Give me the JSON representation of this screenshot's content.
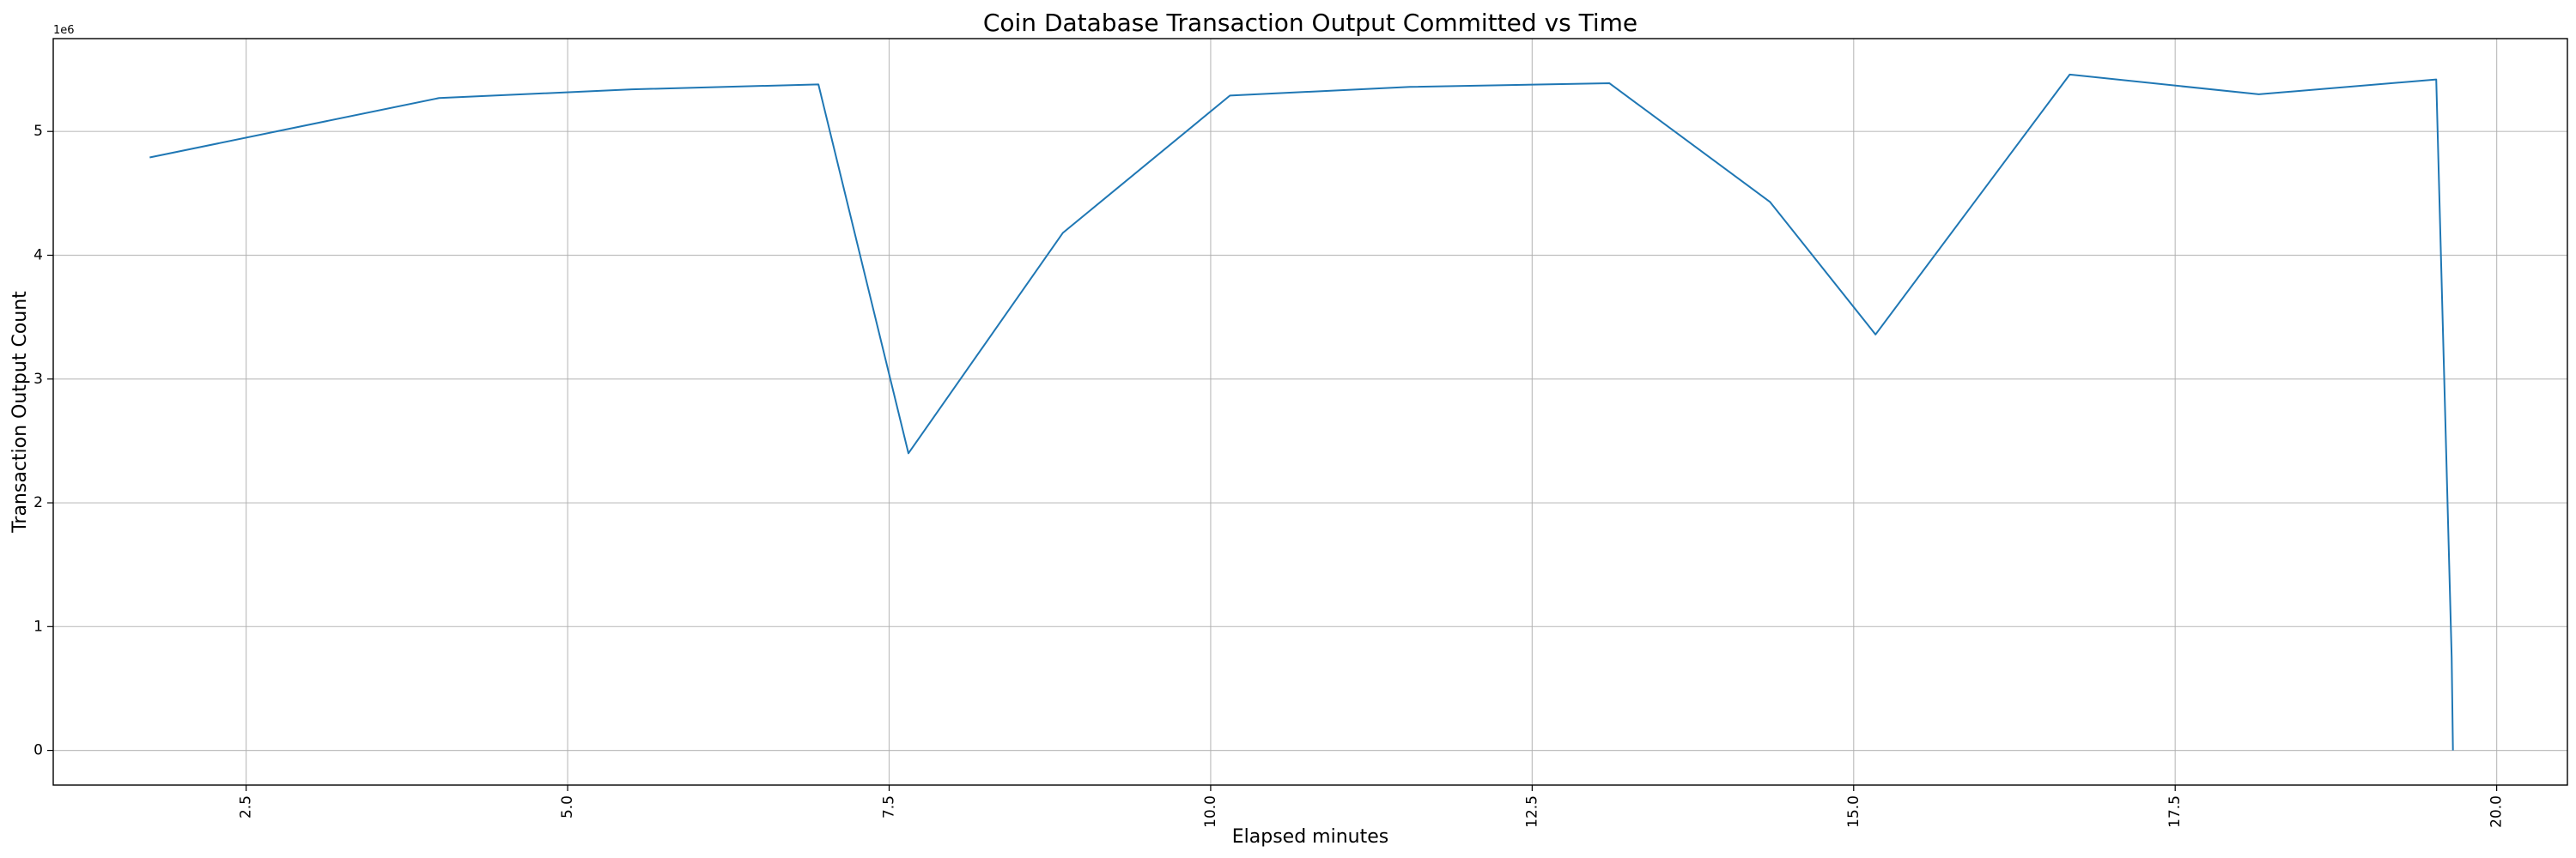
{
  "chart_data": {
    "type": "line",
    "title": "Coin Database Transaction Output Committed vs Time",
    "xlabel": "Elapsed minutes",
    "ylabel": "Transaction Output Count",
    "y_offset_label": "1e6",
    "xlim": [
      1.0,
      20.55
    ],
    "ylim": [
      -0.28,
      5.75
    ],
    "x_ticks": [
      2.5,
      5.0,
      7.5,
      10.0,
      12.5,
      15.0,
      17.5,
      20.0
    ],
    "x_tick_labels": [
      "2.5",
      "5.0",
      "7.5",
      "10.0",
      "12.5",
      "15.0",
      "17.5",
      "20.0"
    ],
    "y_ticks": [
      0,
      1,
      2,
      3,
      4,
      5
    ],
    "y_tick_labels": [
      "0",
      "1",
      "2",
      "3",
      "4",
      "5"
    ],
    "grid": true,
    "series": [
      {
        "color": "#1f77b4",
        "x": [
          1.75,
          4.0,
          5.5,
          6.95,
          7.65,
          8.85,
          10.15,
          11.55,
          13.1,
          14.35,
          15.17,
          16.68,
          18.15,
          19.53,
          19.65,
          19.66
        ],
        "y": [
          4.79,
          5.27,
          5.34,
          5.38,
          2.4,
          4.18,
          5.29,
          5.36,
          5.39,
          4.43,
          3.36,
          5.46,
          5.3,
          5.42,
          0.75,
          0.0
        ]
      }
    ]
  }
}
